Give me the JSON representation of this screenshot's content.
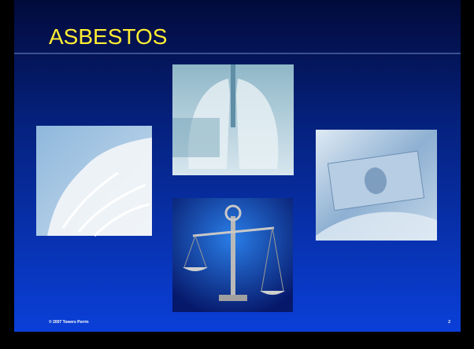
{
  "header": {
    "title": "ASBESTOS"
  },
  "footer": {
    "copyright": "© 2007 Towers Perrin",
    "page": "2"
  }
}
